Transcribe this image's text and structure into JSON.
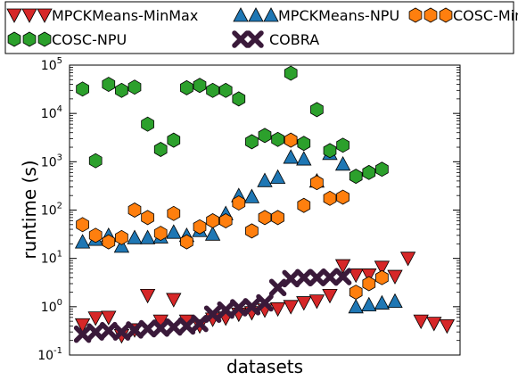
{
  "chart_data": {
    "type": "scatter",
    "title": "",
    "xlabel": "datasets",
    "ylabel": "runtime (s)",
    "yscale": "log",
    "ylim": [
      0.1,
      100000
    ],
    "xlim": [
      0,
      30
    ],
    "grid": false,
    "legend_position": "top",
    "yticks": [
      {
        "base": "10",
        "exp": "-1",
        "value": 0.1
      },
      {
        "base": "10",
        "exp": "0",
        "value": 1
      },
      {
        "base": "10",
        "exp": "1",
        "value": 10
      },
      {
        "base": "10",
        "exp": "2",
        "value": 100
      },
      {
        "base": "10",
        "exp": "3",
        "value": 1000
      },
      {
        "base": "10",
        "exp": "4",
        "value": 10000
      },
      {
        "base": "10",
        "exp": "5",
        "value": 100000
      }
    ],
    "series": [
      {
        "name": "MPCKMeans-MinMax",
        "marker": "triangle-down",
        "color": "#d62728",
        "x": [
          1,
          2,
          3,
          4,
          5,
          6,
          7,
          8,
          9,
          10,
          11,
          12,
          13,
          14,
          15,
          16,
          17,
          18,
          19,
          20,
          21,
          22,
          23,
          24,
          25,
          26,
          27,
          28,
          29
        ],
        "y": [
          0.42,
          0.58,
          0.6,
          0.25,
          0.33,
          1.7,
          0.5,
          1.4,
          0.5,
          0.4,
          0.55,
          0.58,
          0.7,
          0.75,
          0.85,
          0.9,
          1.0,
          1.2,
          1.3,
          1.7,
          7.0,
          4.5,
          4.5,
          6.5,
          4.2,
          10.0,
          0.5,
          0.45,
          0.4
        ]
      },
      {
        "name": "MPCKMeans-NPU",
        "marker": "triangle-up",
        "color": "#1f77b4",
        "x": [
          1,
          2,
          3,
          4,
          5,
          6,
          7,
          8,
          9,
          10,
          11,
          12,
          13,
          14,
          15,
          16,
          17,
          18,
          19,
          20,
          21,
          22,
          23,
          24,
          25
        ],
        "y": [
          22,
          25,
          30,
          18,
          27,
          27,
          28,
          35,
          30,
          38,
          32,
          85,
          200,
          190,
          410,
          480,
          1250,
          1150,
          400,
          1500,
          900,
          1.0,
          1.1,
          1.2,
          1.3
        ]
      },
      {
        "name": "COSC-MinMax",
        "marker": "hexagon",
        "color": "#ff7f0e",
        "x": [
          1,
          2,
          3,
          4,
          5,
          6,
          7,
          8,
          9,
          10,
          11,
          12,
          13,
          14,
          15,
          16,
          17,
          18,
          19,
          20,
          21,
          22,
          23,
          24
        ],
        "y": [
          50,
          30,
          22,
          27,
          100,
          70,
          33,
          85,
          22,
          45,
          60,
          60,
          140,
          37,
          70,
          70,
          2800,
          125,
          370,
          175,
          185,
          2.0,
          3.0,
          4.0
        ]
      },
      {
        "name": "COSC-NPU",
        "marker": "hexagon",
        "color": "#2ca02c",
        "x": [
          1,
          2,
          3,
          4,
          5,
          6,
          7,
          8,
          9,
          10,
          11,
          12,
          13,
          14,
          15,
          16,
          17,
          18,
          19,
          20,
          21,
          22,
          23,
          24
        ],
        "y": [
          32000,
          1050,
          40000,
          30000,
          35000,
          6000,
          1800,
          2800,
          34000,
          38000,
          30000,
          30000,
          20000,
          2600,
          3500,
          2900,
          68000,
          2400,
          12000,
          1700,
          2200,
          500,
          600,
          700
        ]
      },
      {
        "name": "COBRA",
        "marker": "x-thick",
        "color": "#3a1a3a",
        "x": [
          1,
          2,
          3,
          4,
          5,
          6,
          7,
          8,
          9,
          10,
          11,
          12,
          13,
          14,
          15,
          16,
          17,
          18,
          19,
          20,
          21
        ],
        "y": [
          0.27,
          0.3,
          0.32,
          0.3,
          0.33,
          0.35,
          0.36,
          0.38,
          0.4,
          0.45,
          0.7,
          0.85,
          0.95,
          1.0,
          1.2,
          2.5,
          3.8,
          4.0,
          4.0,
          4.1,
          4.2
        ]
      }
    ]
  }
}
